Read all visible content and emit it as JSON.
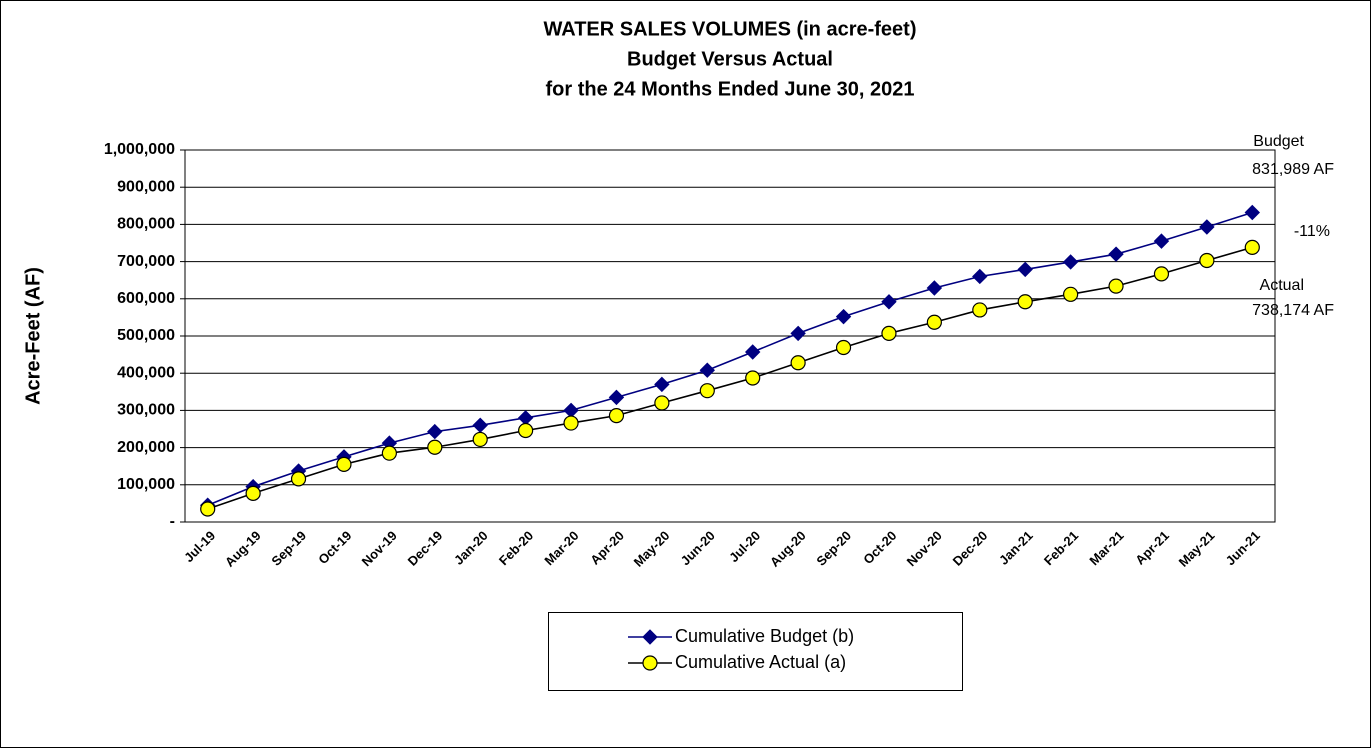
{
  "chart_data": {
    "type": "line",
    "title": [
      "WATER SALES VOLUMES (in acre-feet)",
      "Budget Versus Actual",
      "for the 24 Months Ended June 30, 2021"
    ],
    "y_label": "Acre-Feet (AF)",
    "categories": [
      "Jul-19",
      "Aug-19",
      "Sep-19",
      "Oct-19",
      "Nov-19",
      "Dec-19",
      "Jan-20",
      "Feb-20",
      "Mar-20",
      "Apr-20",
      "May-20",
      "Jun-20",
      "Jul-20",
      "Aug-20",
      "Sep-20",
      "Oct-20",
      "Nov-20",
      "Dec-20",
      "Jan-21",
      "Feb-21",
      "Mar-21",
      "Apr-21",
      "May-21",
      "Jun-21"
    ],
    "series": [
      {
        "name": "Cumulative Budget (b)",
        "color": "#000080",
        "marker": "diamond",
        "values": [
          45000,
          95000,
          137000,
          175000,
          212000,
          243000,
          260000,
          280000,
          300000,
          335000,
          370000,
          408000,
          457000,
          507000,
          552000,
          592000,
          629000,
          660000,
          679000,
          699000,
          720000,
          755000,
          793000,
          831989
        ]
      },
      {
        "name": "Cumulative Actual (a)",
        "color": "#000000",
        "marker_fill": "#ffff00",
        "marker": "circle",
        "values": [
          35000,
          77000,
          116000,
          155000,
          185000,
          201000,
          222000,
          246000,
          266000,
          286000,
          320000,
          353000,
          387000,
          428000,
          469000,
          507000,
          537000,
          570000,
          592000,
          612000,
          634000,
          667000,
          703000,
          738174
        ]
      }
    ],
    "ylim": [
      0,
      1000000
    ],
    "yticks": [
      {
        "value": 0,
        "label": "-"
      },
      {
        "value": 100000,
        "label": "100,000"
      },
      {
        "value": 200000,
        "label": "200,000"
      },
      {
        "value": 300000,
        "label": "300,000"
      },
      {
        "value": 400000,
        "label": "400,000"
      },
      {
        "value": 500000,
        "label": "500,000"
      },
      {
        "value": 600000,
        "label": "600,000"
      },
      {
        "value": 700000,
        "label": "700,000"
      },
      {
        "value": 800000,
        "label": "800,000"
      },
      {
        "value": 900000,
        "label": "900,000"
      },
      {
        "value": 1000000,
        "label": "1,000,000"
      }
    ],
    "grid": true,
    "legend": "bottom",
    "annotations": [
      "Budget",
      "831,989 AF",
      "-11%",
      "Actual",
      "738,174 AF"
    ]
  }
}
